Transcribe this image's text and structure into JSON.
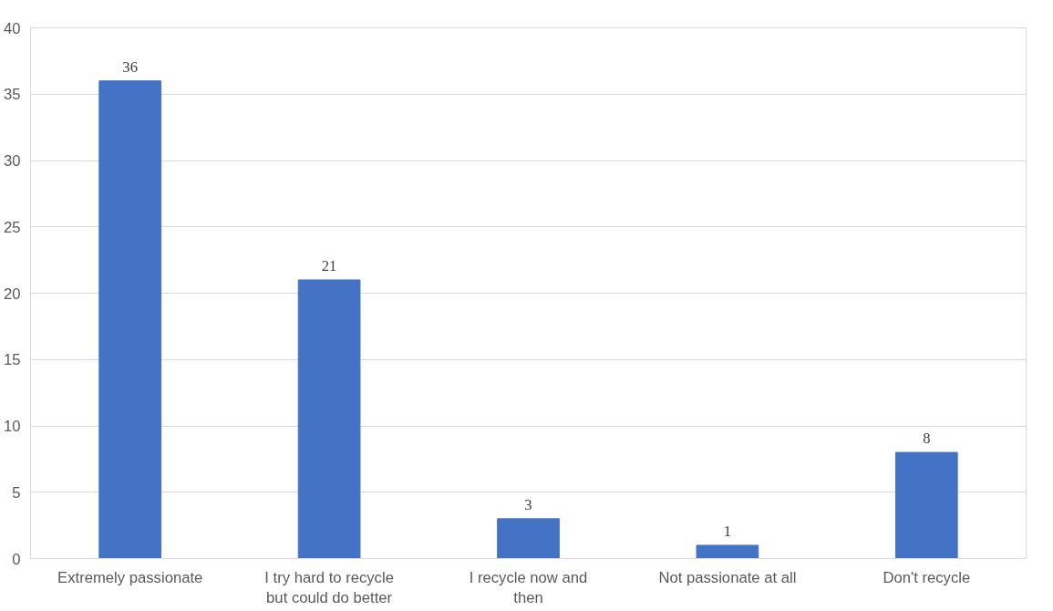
{
  "chart_data": {
    "type": "bar",
    "categories": [
      "Extremely passionate",
      "I try hard to recycle but could do better",
      "I recycle now and then",
      "Not passionate at all",
      "Don't recycle"
    ],
    "values": [
      36,
      21,
      3,
      1,
      8
    ],
    "color": "#4472c4",
    "ylim": [
      0,
      40
    ],
    "yticks": [
      0,
      5,
      10,
      15,
      20,
      25,
      30,
      35,
      40
    ],
    "grid": "y",
    "data_labels": true
  }
}
